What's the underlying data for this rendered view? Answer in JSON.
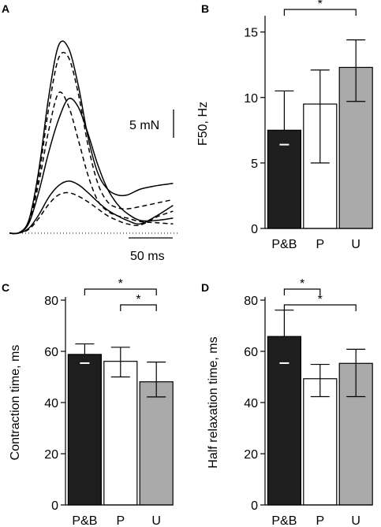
{
  "chart_data": [
    {
      "panel": "A",
      "type": "line",
      "scalebar_y_label": "5 mN",
      "scalebar_x_label": "50 ms",
      "series": [
        {
          "style": "solid",
          "x": [
            0,
            15,
            30,
            45,
            60,
            75,
            90,
            105,
            120,
            135,
            150,
            165,
            180,
            200,
            225,
            250
          ],
          "y": [
            0,
            0.05,
            1.2,
            5.5,
            11.8,
            16.2,
            16.0,
            12.8,
            8.3,
            5.2,
            3.8,
            3.3,
            3.3,
            3.8,
            4.1,
            4.3
          ]
        },
        {
          "style": "dashed",
          "x": [
            0,
            15,
            30,
            45,
            60,
            75,
            90,
            105,
            120,
            135,
            150,
            165,
            180,
            200,
            225,
            250
          ],
          "y": [
            0,
            0.05,
            1.1,
            5.0,
            10.8,
            15.1,
            15.2,
            12.1,
            7.6,
            4.3,
            2.7,
            2.2,
            2.1,
            2.3,
            2.6,
            2.9
          ]
        },
        {
          "style": "dashed",
          "x": [
            0,
            15,
            30,
            45,
            60,
            75,
            90,
            105,
            120,
            135,
            150,
            165,
            180,
            200,
            225,
            250
          ],
          "y": [
            0,
            0.05,
            1.0,
            4.4,
            8.9,
            12.1,
            11.0,
            8.1,
            5.0,
            2.8,
            1.9,
            1.5,
            1.3,
            1.0,
            0.9,
            0.8
          ]
        },
        {
          "style": "solid",
          "x": [
            0,
            15,
            30,
            45,
            60,
            75,
            90,
            105,
            120,
            135,
            150,
            165,
            180,
            200,
            225,
            250
          ],
          "y": [
            0,
            0.05,
            0.9,
            3.6,
            7.0,
            9.8,
            11.6,
            10.9,
            8.6,
            5.9,
            3.8,
            2.5,
            1.7,
            1.1,
            1.1,
            1.3
          ]
        },
        {
          "style": "solid",
          "x": [
            0,
            15,
            30,
            45,
            60,
            75,
            90,
            105,
            120,
            135,
            150,
            165,
            180,
            200,
            225,
            250
          ],
          "y": [
            0,
            0.02,
            0.45,
            1.6,
            3.1,
            4.1,
            4.5,
            4.2,
            3.5,
            2.7,
            2.0,
            1.5,
            1.1,
            0.8,
            1.5,
            2.4
          ]
        },
        {
          "style": "dashed",
          "x": [
            0,
            15,
            30,
            45,
            60,
            75,
            90,
            105,
            120,
            135,
            150,
            165,
            180,
            200,
            225,
            250
          ],
          "y": [
            0,
            0.02,
            0.35,
            1.3,
            2.5,
            3.3,
            3.5,
            3.2,
            2.7,
            2.1,
            1.5,
            1.1,
            0.8,
            0.7,
            1.4,
            1.9
          ]
        }
      ]
    },
    {
      "panel": "B",
      "type": "bar",
      "categories": [
        "P&B",
        "P",
        "U"
      ],
      "values": [
        7.5,
        9.5,
        12.3
      ],
      "error_high": [
        10.5,
        12.1,
        14.4
      ],
      "error_low": [
        null,
        5.0,
        9.7
      ],
      "median": [
        6.4,
        null,
        null
      ],
      "colors": [
        "#1e1e1e",
        "#ffffff",
        "#aaaaaa"
      ],
      "ylabel": "F50, Hz",
      "ylim": [
        0,
        16
      ],
      "yticks": [
        0,
        5,
        10,
        15
      ],
      "significance": [
        {
          "from": 0,
          "to": 2,
          "label": "*"
        }
      ]
    },
    {
      "panel": "C",
      "type": "bar",
      "categories": [
        "P&B",
        "P",
        "U"
      ],
      "values": [
        58.8,
        56.1,
        48.1
      ],
      "error_high": [
        62.9,
        61.6,
        55.8
      ],
      "error_low": [
        null,
        50.0,
        42.2
      ],
      "median": [
        55.4,
        null,
        null
      ],
      "colors": [
        "#1e1e1e",
        "#ffffff",
        "#aaaaaa"
      ],
      "ylabel": "Contraction time, ms",
      "ylim": [
        0,
        80
      ],
      "yticks": [
        0,
        20,
        40,
        60,
        80
      ],
      "significance": [
        {
          "from": 0,
          "to": 2,
          "label": "*"
        },
        {
          "from": 1,
          "to": 2,
          "label": "*"
        }
      ]
    },
    {
      "panel": "D",
      "type": "bar",
      "categories": [
        "P&B",
        "P",
        "U"
      ],
      "values": [
        65.8,
        49.3,
        55.3
      ],
      "error_high": [
        76.1,
        54.9,
        60.8
      ],
      "error_low": [
        null,
        42.3,
        42.3
      ],
      "median": [
        55.4,
        null,
        null
      ],
      "colors": [
        "#1e1e1e",
        "#ffffff",
        "#aaaaaa"
      ],
      "ylabel": "Half relaxation time, ms",
      "ylim": [
        0,
        80
      ],
      "yticks": [
        0,
        20,
        40,
        60,
        80
      ],
      "significance": [
        {
          "from": 0,
          "to": 1,
          "label": "*"
        },
        {
          "from": 0,
          "to": 2,
          "label": "*"
        }
      ]
    }
  ],
  "panel_labels": [
    "A",
    "B",
    "C",
    "D"
  ]
}
